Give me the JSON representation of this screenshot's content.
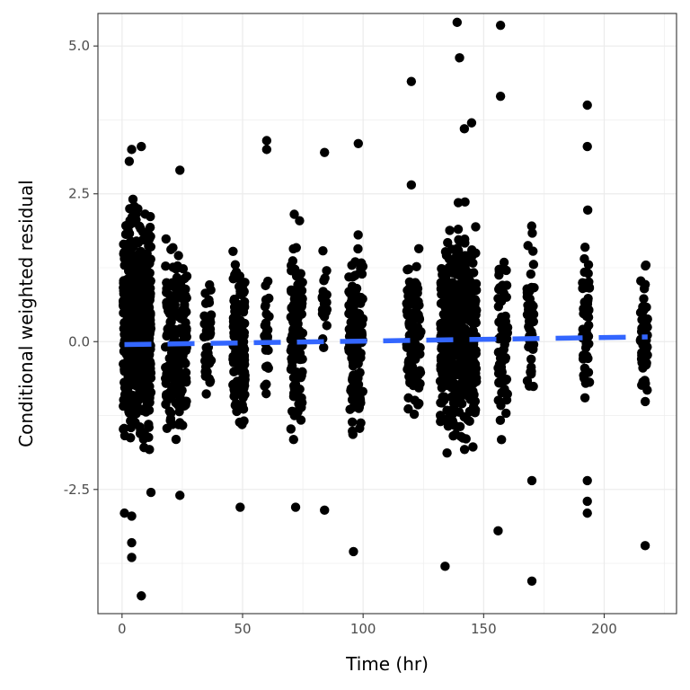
{
  "chart_data": {
    "type": "scatter",
    "title": "",
    "xlabel": "Time (hr)",
    "ylabel": "Conditional weighted residual",
    "xlim": [
      -10,
      230
    ],
    "ylim": [
      -4.6,
      5.55
    ],
    "x_ticks": [
      0,
      50,
      100,
      150,
      200
    ],
    "x_tick_labels": [
      "0",
      "50",
      "100",
      "150",
      "200"
    ],
    "y_ticks": [
      -2.5,
      0,
      2.5,
      5
    ],
    "y_tick_labels": [
      "-2.5",
      "0.0",
      "2.5",
      "5.0"
    ],
    "grid": true,
    "legend": "none",
    "colors": {
      "points": "#000000",
      "trend": "#3366ff",
      "grid": "#ebebeb",
      "panel_border": "#333333"
    },
    "point_clusters": [
      {
        "x_min": 0.5,
        "x_max": 12,
        "y_min": -2.3,
        "y_max": 2.8,
        "n": 700
      },
      {
        "x_min": 18,
        "x_max": 27,
        "y_min": -2.2,
        "y_max": 2.2,
        "n": 180
      },
      {
        "x_min": 34,
        "x_max": 37,
        "y_min": -1.7,
        "y_max": 1.75,
        "n": 45
      },
      {
        "x_min": 46,
        "x_max": 51,
        "y_min": -2.1,
        "y_max": 2.1,
        "n": 150
      },
      {
        "x_min": 59,
        "x_max": 61,
        "y_min": -1.7,
        "y_max": 2.1,
        "n": 30
      },
      {
        "x_min": 70,
        "x_max": 75,
        "y_min": -2.0,
        "y_max": 2.3,
        "n": 120
      },
      {
        "x_min": 83,
        "x_max": 85,
        "y_min": -1.0,
        "y_max": 1.8,
        "n": 20
      },
      {
        "x_min": 94,
        "x_max": 100,
        "y_min": -2.0,
        "y_max": 2.3,
        "n": 140
      },
      {
        "x_min": 118,
        "x_max": 124,
        "y_min": -2.0,
        "y_max": 2.0,
        "n": 110
      },
      {
        "x_min": 132,
        "x_max": 147,
        "y_min": -2.3,
        "y_max": 2.6,
        "n": 500
      },
      {
        "x_min": 156,
        "x_max": 160,
        "y_min": -2.0,
        "y_max": 2.2,
        "n": 70
      },
      {
        "x_min": 168,
        "x_max": 171,
        "y_min": -1.6,
        "y_max": 2.2,
        "n": 50
      },
      {
        "x_min": 191,
        "x_max": 194,
        "y_min": -1.6,
        "y_max": 2.4,
        "n": 55
      },
      {
        "x_min": 215,
        "x_max": 218,
        "y_min": -1.6,
        "y_max": 1.9,
        "n": 55
      }
    ],
    "outliers": [
      {
        "x": 1,
        "y": -2.9
      },
      {
        "x": 4,
        "y": -2.95
      },
      {
        "x": 4,
        "y": -3.4
      },
      {
        "x": 4,
        "y": -3.65
      },
      {
        "x": 8,
        "y": -4.3
      },
      {
        "x": 3,
        "y": 3.05
      },
      {
        "x": 4,
        "y": 3.25
      },
      {
        "x": 8,
        "y": 3.3
      },
      {
        "x": 12,
        "y": -2.55
      },
      {
        "x": 24,
        "y": 2.9
      },
      {
        "x": 24,
        "y": -2.6
      },
      {
        "x": 49,
        "y": -2.8
      },
      {
        "x": 60,
        "y": 3.4
      },
      {
        "x": 60,
        "y": 3.25
      },
      {
        "x": 72,
        "y": -2.8
      },
      {
        "x": 84,
        "y": 3.2
      },
      {
        "x": 84,
        "y": -2.85
      },
      {
        "x": 96,
        "y": -3.55
      },
      {
        "x": 98,
        "y": 3.35
      },
      {
        "x": 120,
        "y": 4.4
      },
      {
        "x": 120,
        "y": 2.65
      },
      {
        "x": 134,
        "y": -3.8
      },
      {
        "x": 139,
        "y": 5.4
      },
      {
        "x": 140,
        "y": 4.8
      },
      {
        "x": 142,
        "y": 3.6
      },
      {
        "x": 145,
        "y": 3.7
      },
      {
        "x": 157,
        "y": 5.35
      },
      {
        "x": 157,
        "y": 4.15
      },
      {
        "x": 156,
        "y": -3.2
      },
      {
        "x": 170,
        "y": -4.05
      },
      {
        "x": 170,
        "y": -2.35
      },
      {
        "x": 193,
        "y": 4.0
      },
      {
        "x": 193,
        "y": 3.3
      },
      {
        "x": 193,
        "y": -2.35
      },
      {
        "x": 193,
        "y": -2.7
      },
      {
        "x": 193,
        "y": -2.9
      },
      {
        "x": 217,
        "y": -3.45
      }
    ],
    "trend_line": {
      "x": [
        1,
        218
      ],
      "y": [
        -0.05,
        0.08
      ],
      "style": "dashed"
    }
  }
}
